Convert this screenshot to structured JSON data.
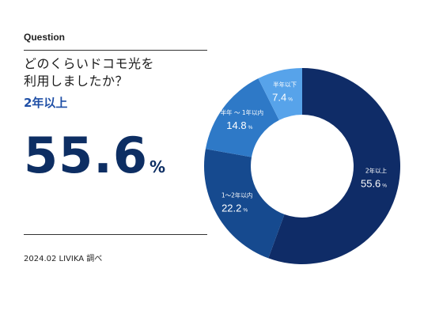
{
  "header": {
    "eyebrow": "Question",
    "question": "どのくらいドコモ光を\n利用しましたか？"
  },
  "highlight": {
    "label": "2年以上",
    "value": "55.6",
    "unit": "%"
  },
  "footer": {
    "source": "2024.02 LIVIKA 調べ"
  },
  "colors": {
    "highlight_text": "#1f4fa6",
    "big_value": "#0d2e63"
  },
  "chart_data": {
    "type": "pie",
    "donut": true,
    "unit": "%",
    "slices": [
      {
        "name": "2年以上",
        "value": 55.6,
        "color": "#0f2c67"
      },
      {
        "name": "1～2年以内",
        "value": 22.2,
        "color": "#164a8f"
      },
      {
        "name": "半年 ～ 1年以内",
        "value": 14.8,
        "color": "#2e79c7"
      },
      {
        "name": "半年以下",
        "value": 7.4,
        "color": "#57a3ea"
      }
    ]
  }
}
